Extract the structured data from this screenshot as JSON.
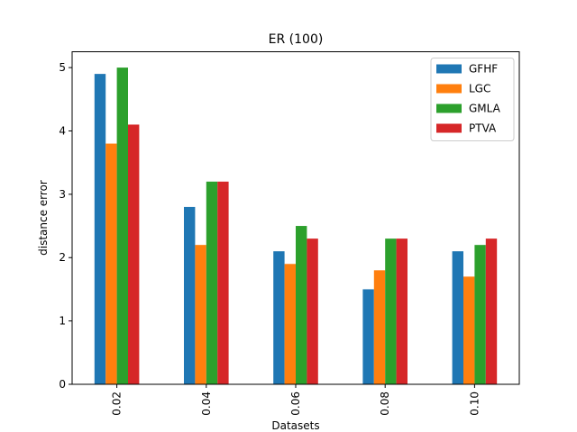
{
  "chart_data": {
    "type": "bar",
    "title": "ER (100)",
    "x_label": "Datasets",
    "y_label": "distance error",
    "categories": [
      "0.02",
      "0.04",
      "0.06",
      "0.08",
      "0.10"
    ],
    "series": [
      {
        "name": "GFHF",
        "color": "#1f77b4",
        "values": [
          4.9,
          2.8,
          2.1,
          1.5,
          2.1
        ]
      },
      {
        "name": "LGC",
        "color": "#ff7f0e",
        "values": [
          3.8,
          2.2,
          1.9,
          1.8,
          1.7
        ]
      },
      {
        "name": "GMLA",
        "color": "#2ca02c",
        "values": [
          5.0,
          3.2,
          2.5,
          2.3,
          2.2
        ]
      },
      {
        "name": "PTVA",
        "color": "#d62728",
        "values": [
          4.1,
          3.2,
          2.3,
          2.3,
          2.3
        ]
      }
    ],
    "ylim": [
      0,
      5.25
    ],
    "yticks": [
      0,
      1,
      2,
      3,
      4,
      5
    ],
    "grid": false,
    "legend": "upper right"
  }
}
